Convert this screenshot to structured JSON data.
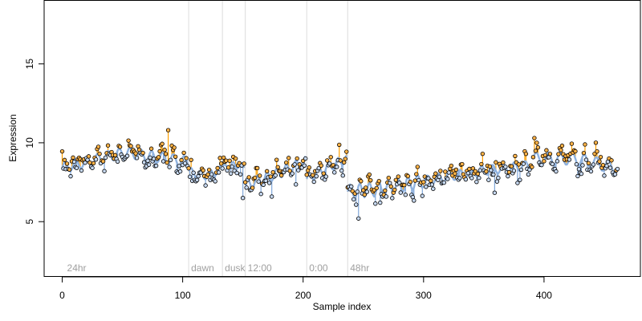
{
  "chart_data": {
    "type": "scatter",
    "title": "",
    "xlabel": "Sample index",
    "ylabel": "Expression",
    "xlim": [
      -15,
      480
    ],
    "ylim": [
      1.5,
      19
    ],
    "xticks": [
      0,
      100,
      200,
      300,
      400
    ],
    "yticks": [
      5,
      10,
      15
    ],
    "grid": false,
    "legend": "none",
    "colors": {
      "fit_line": "#8fb2df",
      "residual_above": "#ff9f00",
      "residual_below": "#7fa6d8",
      "point_above_fill": "#ffb347",
      "point_below_fill": "#c6d8f0",
      "point_stroke": "#000000",
      "phase_line": "#dcdcdc",
      "phase_text": "#a0a0a0"
    },
    "phase_markers": [
      {
        "x": 2,
        "label": "24hr",
        "line": false
      },
      {
        "x": 105,
        "label": "dawn",
        "line": true
      },
      {
        "x": 133,
        "label": "dusk",
        "line": true
      },
      {
        "x": 152,
        "label": "12:00",
        "line": true
      },
      {
        "x": 203,
        "label": "0:00",
        "line": true
      },
      {
        "x": 237,
        "label": "48hr",
        "line": true
      }
    ],
    "segments": [
      {
        "x0": 0,
        "x1": 104,
        "y_start": 8.4,
        "y_mid": 9.4,
        "y_end": 8.8,
        "amp": 0.35,
        "period": 9
      },
      {
        "x0": 105,
        "x1": 132,
        "y_start": 8.2,
        "y_mid": 7.9,
        "y_end": 8.3,
        "amp": 0.25,
        "period": 8
      },
      {
        "x0": 133,
        "x1": 151,
        "y_start": 8.4,
        "y_mid": 8.6,
        "y_end": 8.5,
        "amp": 0.2,
        "period": 7
      },
      {
        "x0": 152,
        "x1": 202,
        "y_start": 7.3,
        "y_mid": 8.0,
        "y_end": 8.8,
        "amp": 0.35,
        "period": 8
      },
      {
        "x0": 203,
        "x1": 236,
        "y_start": 7.7,
        "y_mid": 8.4,
        "y_end": 9.0,
        "amp": 0.3,
        "period": 8
      },
      {
        "x0": 237,
        "x1": 300,
        "y_start": 6.9,
        "y_mid": 7.1,
        "y_end": 7.6,
        "amp": 0.45,
        "period": 8
      },
      {
        "x0": 301,
        "x1": 390,
        "y_start": 7.6,
        "y_mid": 8.2,
        "y_end": 8.6,
        "amp": 0.3,
        "period": 9
      },
      {
        "x0": 391,
        "x1": 461,
        "y_start": 9.0,
        "y_mid": 9.0,
        "y_end": 8.4,
        "amp": 0.4,
        "period": 10
      }
    ],
    "noise_sd": 0.38,
    "outliers": [
      {
        "x": 88,
        "y": 10.8
      },
      {
        "x": 150,
        "y": 6.5
      },
      {
        "x": 246,
        "y": 5.2
      },
      {
        "x": 264,
        "y": 6.2
      },
      {
        "x": 349,
        "y": 9.3
      },
      {
        "x": 392,
        "y": 10.3
      }
    ],
    "n_points": 462
  }
}
